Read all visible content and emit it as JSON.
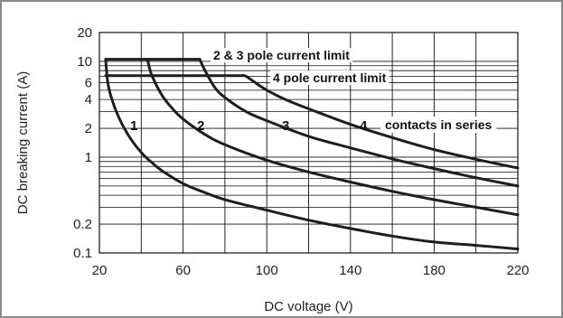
{
  "chart_data": {
    "type": "line",
    "xlabel": "DC voltage (V)",
    "ylabel": "DC breaking current (A)",
    "xlim": [
      20,
      220
    ],
    "ylim": [
      0.1,
      20
    ],
    "y_scale": "log",
    "grid": true,
    "x_ticks": [
      20,
      60,
      100,
      140,
      180,
      220
    ],
    "y_tick_labels": [
      {
        "value": 0.1,
        "label": "0.1"
      },
      {
        "value": 0.2,
        "label": "0.2"
      },
      {
        "value": 1,
        "label": "1"
      },
      {
        "value": 2,
        "label": "2"
      },
      {
        "value": 4,
        "label": "4"
      },
      {
        "value": 6,
        "label": "6"
      },
      {
        "value": 10,
        "label": "10"
      },
      {
        "value": 20,
        "label": "20"
      }
    ],
    "series": [
      {
        "name": "1",
        "x": [
          23,
          24,
          26,
          30,
          35,
          40,
          45,
          50,
          60,
          70,
          80,
          100,
          120,
          140,
          160,
          180,
          200,
          220
        ],
        "y": [
          10.5,
          6.0,
          4.0,
          2.4,
          1.55,
          1.12,
          0.88,
          0.72,
          0.53,
          0.43,
          0.36,
          0.28,
          0.22,
          0.18,
          0.15,
          0.13,
          0.12,
          0.11
        ]
      },
      {
        "name": "2",
        "x": [
          43,
          45,
          50,
          55,
          60,
          70,
          80,
          100,
          120,
          140,
          160,
          180,
          200,
          220
        ],
        "y": [
          10.5,
          7.2,
          4.4,
          3.2,
          2.5,
          1.75,
          1.35,
          0.93,
          0.7,
          0.55,
          0.44,
          0.36,
          0.3,
          0.25
        ]
      },
      {
        "name": "3",
        "x": [
          68,
          70,
          75,
          80,
          90,
          100,
          120,
          140,
          160,
          180,
          200,
          220
        ],
        "y": [
          10.5,
          8.4,
          5.4,
          4.2,
          3.0,
          2.4,
          1.65,
          1.25,
          0.96,
          0.76,
          0.61,
          0.5
        ]
      },
      {
        "name": "4",
        "x": [
          88,
          90,
          95,
          100,
          110,
          120,
          140,
          160,
          180,
          200,
          220
        ],
        "y": [
          7.1,
          7.0,
          5.9,
          5.0,
          3.9,
          3.2,
          2.2,
          1.6,
          1.2,
          0.95,
          0.77
        ]
      }
    ],
    "limits": [
      {
        "label": "2 & 3 pole current limit",
        "value": 10.5,
        "x": [
          23,
          68
        ]
      },
      {
        "label": "4 pole current limit",
        "value": 7.1,
        "x": [
          23,
          88
        ]
      }
    ],
    "annotation": "contacts in series"
  },
  "colors": {
    "curve": "#1e1e1e",
    "grid": "#111111",
    "frame": "#8a8a8a"
  }
}
